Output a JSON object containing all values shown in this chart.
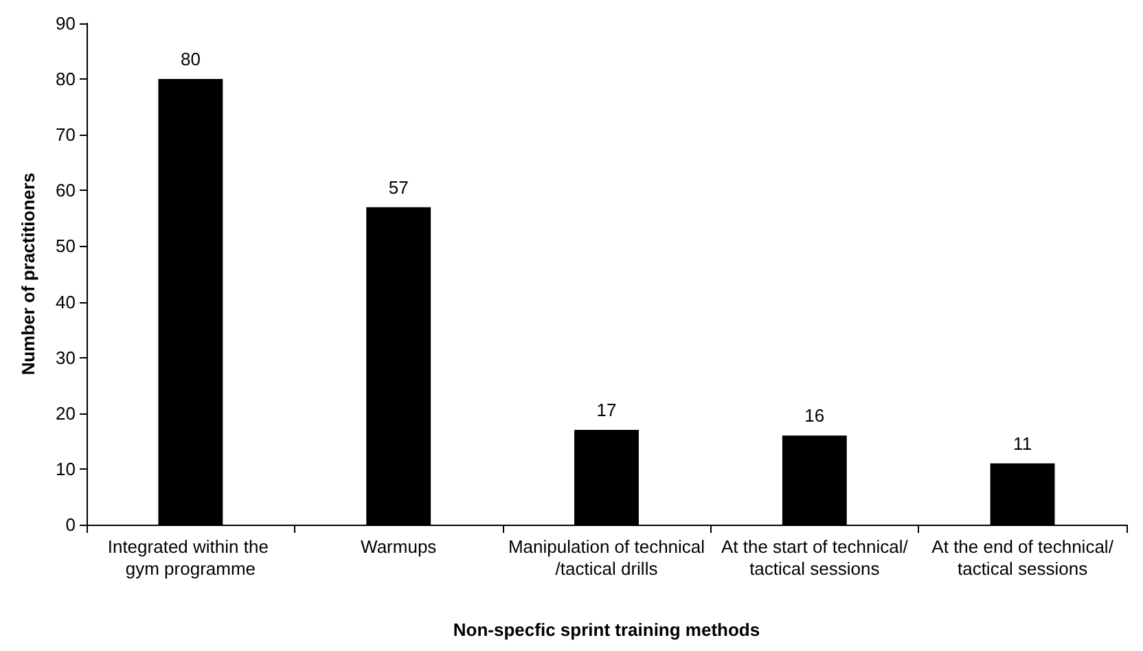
{
  "chart_data": {
    "type": "bar",
    "xlabel": "Non-specfic sprint training methods",
    "ylabel": "Number of practitioners",
    "categories": [
      "Integrated within the gym programme",
      "Warmups",
      "Manipulation of technical/tactical drills",
      "At the start of technical/tactical sessions",
      "At the end of technical/tactical sessions"
    ],
    "values": [
      80,
      57,
      17,
      16,
      11
    ],
    "color": "#000000",
    "ylim": [
      0,
      90
    ],
    "yticks": [
      0,
      10,
      20,
      30,
      40,
      50,
      60,
      70,
      80,
      90
    ],
    "grid": false,
    "data_labels": true
  }
}
